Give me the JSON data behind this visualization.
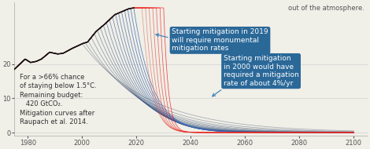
{
  "xlim": [
    1975,
    2105
  ],
  "ylim": [
    -1,
    38
  ],
  "yticks": [
    0,
    10,
    20
  ],
  "xtick_vals": [
    1980,
    2000,
    2020,
    2040,
    2060,
    2080,
    2100
  ],
  "bg_color": "#f0efe8",
  "historical_color": "#111111",
  "annotation1_text": "Starting mitigation in 2019\nwill require monumental\nmitigation rates",
  "annotation2_text": "Starting mitigation\nin 2000 would have\nrequired a mitigation\nrate of about 4%/yr",
  "annotation_bg": "#2a6898",
  "annotation_text_color": "#ffffff",
  "left_text": "For a >66% chance\nof staying below 1.5°C.\nRemaining budget:\n   420 GtCO₂.\nMitigation curves after\nRaupach et al. 2014.",
  "top_right_text": "out of the atmosphere.",
  "note_fontsize": 6.0,
  "annot_fontsize": 6.5,
  "peak_year": 2019,
  "peak_val": 36.5
}
